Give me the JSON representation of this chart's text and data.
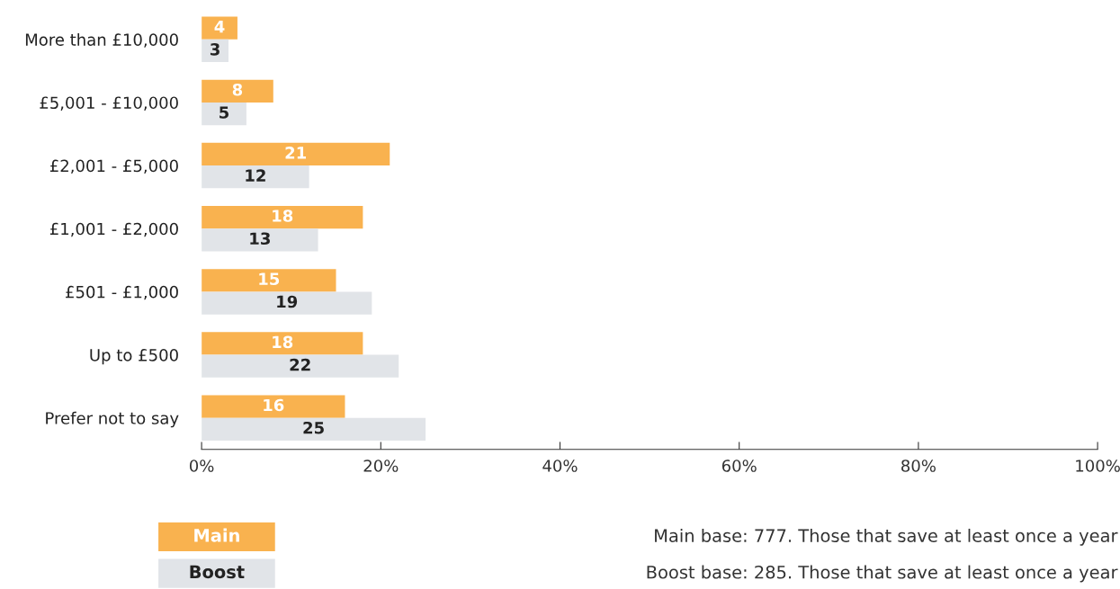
{
  "chart_data": {
    "type": "bar",
    "orientation": "horizontal",
    "categories": [
      "More than £10,000",
      "£5,001 - £10,000",
      "£2,001 - £5,000",
      "£1,001 - £2,000",
      "£501 - £1,000",
      "Up to £500",
      "Prefer not to say"
    ],
    "series": [
      {
        "name": "Main",
        "color": "#f9b24f",
        "values": [
          4,
          8,
          21,
          18,
          15,
          18,
          16
        ]
      },
      {
        "name": "Boost",
        "color": "#e1e4e8",
        "values": [
          3,
          5,
          12,
          13,
          19,
          22,
          25
        ]
      }
    ],
    "xlim": [
      0,
      100
    ],
    "xticks": [
      {
        "value": 0,
        "label": "0%"
      },
      {
        "value": 20,
        "label": "20%"
      },
      {
        "value": 40,
        "label": "40%"
      },
      {
        "value": 60,
        "label": "60%"
      },
      {
        "value": 80,
        "label": "80%"
      },
      {
        "value": 100,
        "label": "100%"
      }
    ],
    "data_labels": true,
    "grid": false,
    "legend": "bottom left",
    "annotations": [
      "Main base: 777. Those that save at least once a year",
      "Boost base: 285. Those that save at least once a year"
    ]
  }
}
